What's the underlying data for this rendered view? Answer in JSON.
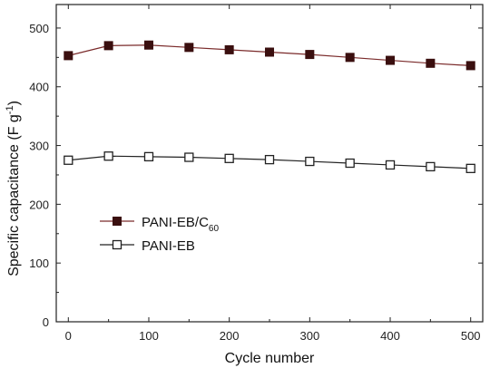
{
  "chart_data": {
    "type": "line",
    "xlabel": "Cycle number",
    "ylabel": "Specific capacitance (F g",
    "ylabel_sup": "-1",
    "ylabel_close": ")",
    "xlim": [
      -15,
      515
    ],
    "ylim": [
      0,
      540
    ],
    "xticks": [
      0,
      100,
      200,
      300,
      400,
      500
    ],
    "yticks": [
      0,
      100,
      200,
      300,
      400,
      500
    ],
    "x": [
      0,
      50,
      100,
      150,
      200,
      250,
      300,
      350,
      400,
      450,
      500
    ],
    "series": [
      {
        "name": "PANI-EB/C",
        "name_sub": "60",
        "marker": "filled-square",
        "color": "#7a2a2a",
        "marker_color": "#3a0f0f",
        "values": [
          453,
          470,
          471,
          467,
          463,
          459,
          455,
          450,
          445,
          440,
          436
        ]
      },
      {
        "name": "PANI-EB",
        "marker": "open-square",
        "color": "#222222",
        "marker_color": "#222222",
        "values": [
          275,
          282,
          281,
          280,
          278,
          276,
          273,
          270,
          267,
          264,
          261
        ]
      }
    ],
    "legend_position": "center-left",
    "grid": false
  }
}
